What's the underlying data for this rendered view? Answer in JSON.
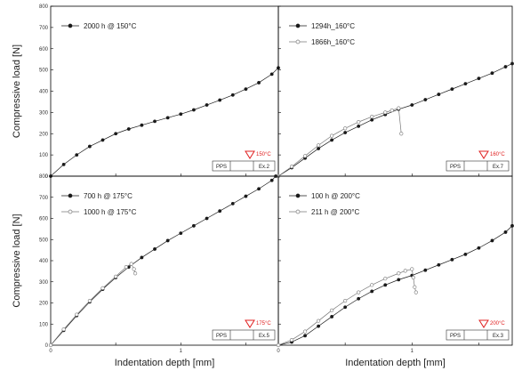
{
  "colors": {
    "series_filled": "#1a1a1a",
    "series_open": "#777777",
    "temperature_marker": "#e02020",
    "axes": "#000000"
  },
  "chart_data": [
    {
      "type": "scatter",
      "panel": "top-left",
      "xlabel": "",
      "ylabel": "Compressive load [N]",
      "xlim": [
        0,
        1.75
      ],
      "ylim": [
        0,
        800
      ],
      "x_ticks": [],
      "y_ticks": [
        "0",
        "100",
        "200",
        "300",
        "400",
        "500",
        "600",
        "700",
        "800"
      ],
      "legend_position": "top-left",
      "series": [
        {
          "name": "2000 h @ 150°C",
          "marker": "filled",
          "points": [
            [
              0,
              0
            ],
            [
              0.1,
              55
            ],
            [
              0.2,
              100
            ],
            [
              0.3,
              140
            ],
            [
              0.4,
              170
            ],
            [
              0.5,
              200
            ],
            [
              0.6,
              222
            ],
            [
              0.7,
              240
            ],
            [
              0.8,
              258
            ],
            [
              0.9,
              275
            ],
            [
              1.0,
              292
            ],
            [
              1.1,
              312
            ],
            [
              1.2,
              335
            ],
            [
              1.3,
              358
            ],
            [
              1.4,
              382
            ],
            [
              1.5,
              410
            ],
            [
              1.6,
              440
            ],
            [
              1.7,
              480
            ],
            [
              1.75,
              510
            ]
          ]
        }
      ],
      "stamp": {
        "temperature": "150°C",
        "material": "PPS",
        "label": "Ex.2"
      }
    },
    {
      "type": "scatter",
      "panel": "top-right",
      "xlabel": "",
      "ylabel": "",
      "xlim": [
        0,
        1.75
      ],
      "ylim": [
        0,
        800
      ],
      "x_ticks": [],
      "y_ticks": [],
      "legend_position": "top-left",
      "series": [
        {
          "name": "1294h_160°C",
          "marker": "filled",
          "points": [
            [
              0,
              0
            ],
            [
              0.1,
              40
            ],
            [
              0.2,
              85
            ],
            [
              0.3,
              130
            ],
            [
              0.4,
              170
            ],
            [
              0.5,
              205
            ],
            [
              0.6,
              235
            ],
            [
              0.7,
              265
            ],
            [
              0.8,
              290
            ],
            [
              0.9,
              315
            ],
            [
              1.0,
              335
            ],
            [
              1.1,
              360
            ],
            [
              1.2,
              385
            ],
            [
              1.3,
              410
            ],
            [
              1.4,
              435
            ],
            [
              1.5,
              460
            ],
            [
              1.6,
              485
            ],
            [
              1.7,
              515
            ],
            [
              1.75,
              530
            ]
          ]
        },
        {
          "name": "1866h_160°C",
          "marker": "open",
          "points": [
            [
              0,
              0
            ],
            [
              0.1,
              45
            ],
            [
              0.2,
              95
            ],
            [
              0.3,
              145
            ],
            [
              0.4,
              190
            ],
            [
              0.5,
              225
            ],
            [
              0.6,
              255
            ],
            [
              0.7,
              280
            ],
            [
              0.8,
              300
            ],
            [
              0.85,
              310
            ],
            [
              0.9,
              320
            ],
            [
              0.92,
              200
            ]
          ]
        }
      ],
      "stamp": {
        "temperature": "160°C",
        "material": "PPS",
        "label": "Ex.7"
      }
    },
    {
      "type": "scatter",
      "panel": "bottom-left",
      "xlabel": "Indentation depth [mm]",
      "ylabel": "Compressive load [N]",
      "xlim": [
        0,
        1.75
      ],
      "ylim": [
        0,
        800
      ],
      "x_ticks": [
        "0",
        "1"
      ],
      "y_ticks": [
        "0",
        "100",
        "200",
        "300",
        "400",
        "500",
        "600",
        "700",
        "800"
      ],
      "legend_position": "top-left",
      "series": [
        {
          "name": "700 h @ 175°C",
          "marker": "filled",
          "points": [
            [
              0,
              0
            ],
            [
              0.1,
              70
            ],
            [
              0.2,
              140
            ],
            [
              0.3,
              205
            ],
            [
              0.4,
              265
            ],
            [
              0.5,
              320
            ],
            [
              0.6,
              370
            ],
            [
              0.7,
              415
            ],
            [
              0.8,
              455
            ],
            [
              0.9,
              495
            ],
            [
              1.0,
              530
            ],
            [
              1.1,
              565
            ],
            [
              1.2,
              600
            ],
            [
              1.3,
              635
            ],
            [
              1.4,
              670
            ],
            [
              1.5,
              705
            ],
            [
              1.6,
              740
            ],
            [
              1.7,
              780
            ],
            [
              1.73,
              800
            ]
          ]
        },
        {
          "name": "1000 h @ 175°C",
          "marker": "open",
          "points": [
            [
              0,
              0
            ],
            [
              0.1,
              75
            ],
            [
              0.2,
              145
            ],
            [
              0.3,
              210
            ],
            [
              0.4,
              270
            ],
            [
              0.5,
              325
            ],
            [
              0.58,
              370
            ],
            [
              0.62,
              385
            ],
            [
              0.64,
              360
            ],
            [
              0.65,
              340
            ]
          ]
        }
      ],
      "stamp": {
        "temperature": "175°C",
        "material": "PPS",
        "label": "Ex.5"
      }
    },
    {
      "type": "scatter",
      "panel": "bottom-right",
      "xlabel": "Indentation depth [mm]",
      "ylabel": "",
      "xlim": [
        0,
        1.75
      ],
      "ylim": [
        0,
        800
      ],
      "x_ticks": [
        "0",
        "1"
      ],
      "y_ticks": [],
      "legend_position": "top-left",
      "series": [
        {
          "name": "100 h @ 200°C",
          "marker": "filled",
          "points": [
            [
              0,
              0
            ],
            [
              0.1,
              15
            ],
            [
              0.2,
              45
            ],
            [
              0.3,
              90
            ],
            [
              0.4,
              135
            ],
            [
              0.5,
              180
            ],
            [
              0.6,
              220
            ],
            [
              0.7,
              255
            ],
            [
              0.8,
              285
            ],
            [
              0.9,
              310
            ],
            [
              1.0,
              330
            ],
            [
              1.1,
              355
            ],
            [
              1.2,
              380
            ],
            [
              1.3,
              405
            ],
            [
              1.4,
              430
            ],
            [
              1.5,
              460
            ],
            [
              1.6,
              495
            ],
            [
              1.7,
              535
            ],
            [
              1.75,
              565
            ]
          ]
        },
        {
          "name": "211 h @ 200°C",
          "marker": "open",
          "points": [
            [
              0,
              0
            ],
            [
              0.1,
              25
            ],
            [
              0.2,
              65
            ],
            [
              0.3,
              115
            ],
            [
              0.4,
              165
            ],
            [
              0.5,
              210
            ],
            [
              0.6,
              250
            ],
            [
              0.7,
              285
            ],
            [
              0.8,
              315
            ],
            [
              0.9,
              340
            ],
            [
              0.95,
              352
            ],
            [
              1.0,
              360
            ],
            [
              1.01,
              320
            ],
            [
              1.02,
              275
            ],
            [
              1.03,
              250
            ]
          ]
        }
      ],
      "stamp": {
        "temperature": "200°C",
        "material": "PPS",
        "label": "Ex.3"
      }
    }
  ]
}
